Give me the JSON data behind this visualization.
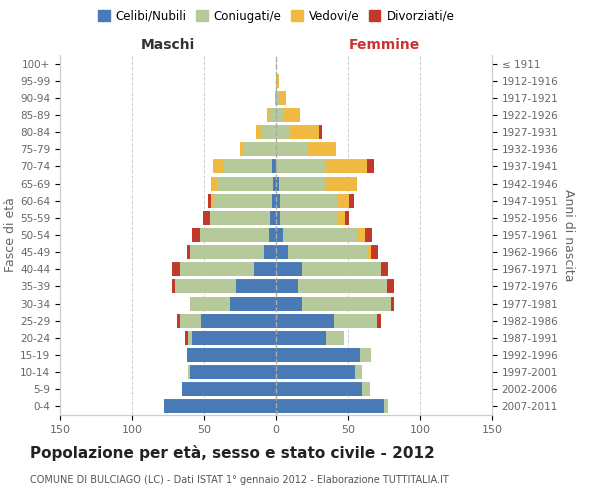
{
  "age_groups": [
    "0-4",
    "5-9",
    "10-14",
    "15-19",
    "20-24",
    "25-29",
    "30-34",
    "35-39",
    "40-44",
    "45-49",
    "50-54",
    "55-59",
    "60-64",
    "65-69",
    "70-74",
    "75-79",
    "80-84",
    "85-89",
    "90-94",
    "95-99",
    "100+"
  ],
  "birth_years": [
    "2007-2011",
    "2002-2006",
    "1997-2001",
    "1992-1996",
    "1987-1991",
    "1982-1986",
    "1977-1981",
    "1972-1976",
    "1967-1971",
    "1962-1966",
    "1957-1961",
    "1952-1956",
    "1947-1951",
    "1942-1946",
    "1937-1941",
    "1932-1936",
    "1927-1931",
    "1922-1926",
    "1917-1921",
    "1912-1916",
    "≤ 1911"
  ],
  "male": {
    "celibi": [
      78,
      65,
      60,
      62,
      58,
      52,
      32,
      28,
      15,
      8,
      5,
      4,
      3,
      2,
      3,
      0,
      0,
      0,
      0,
      0,
      0
    ],
    "coniugati": [
      0,
      0,
      1,
      0,
      3,
      15,
      28,
      42,
      52,
      52,
      48,
      42,
      40,
      38,
      33,
      22,
      10,
      4,
      1,
      0,
      0
    ],
    "vedovi": [
      0,
      0,
      0,
      0,
      0,
      0,
      0,
      0,
      0,
      0,
      0,
      0,
      2,
      5,
      8,
      3,
      4,
      2,
      0,
      0,
      0
    ],
    "divorziati": [
      0,
      0,
      0,
      0,
      2,
      2,
      0,
      2,
      5,
      2,
      5,
      5,
      2,
      0,
      0,
      0,
      0,
      0,
      0,
      0,
      0
    ]
  },
  "female": {
    "nubili": [
      75,
      60,
      55,
      58,
      35,
      40,
      18,
      15,
      18,
      8,
      5,
      3,
      3,
      2,
      0,
      0,
      0,
      0,
      0,
      0,
      0
    ],
    "coniugate": [
      3,
      5,
      5,
      8,
      12,
      30,
      62,
      62,
      55,
      55,
      52,
      40,
      40,
      32,
      35,
      22,
      10,
      5,
      2,
      0,
      0
    ],
    "vedove": [
      0,
      0,
      0,
      0,
      0,
      0,
      0,
      0,
      0,
      3,
      5,
      5,
      8,
      22,
      28,
      20,
      20,
      12,
      5,
      2,
      0
    ],
    "divorziate": [
      0,
      0,
      0,
      0,
      0,
      3,
      2,
      5,
      5,
      5,
      5,
      3,
      3,
      0,
      5,
      0,
      2,
      0,
      0,
      0,
      0
    ]
  },
  "colors": {
    "celibi_nubili": "#4a7ab5",
    "coniugati": "#b5c99a",
    "vedovi": "#f0b942",
    "divorziati": "#c0392b"
  },
  "title": "Popolazione per età, sesso e stato civile - 2012",
  "subtitle": "COMUNE DI BULCIAGO (LC) - Dati ISTAT 1° gennaio 2012 - Elaborazione TUTTITALIA.IT",
  "xlabel_left": "Maschi",
  "xlabel_right": "Femmine",
  "ylabel_left": "Fasce di età",
  "ylabel_right": "Anni di nascita",
  "xlim": 150,
  "legend_labels": [
    "Celibi/Nubili",
    "Coniugati/e",
    "Vedovi/e",
    "Divorziati/e"
  ],
  "bg_color": "#ffffff",
  "grid_color": "#cccccc"
}
